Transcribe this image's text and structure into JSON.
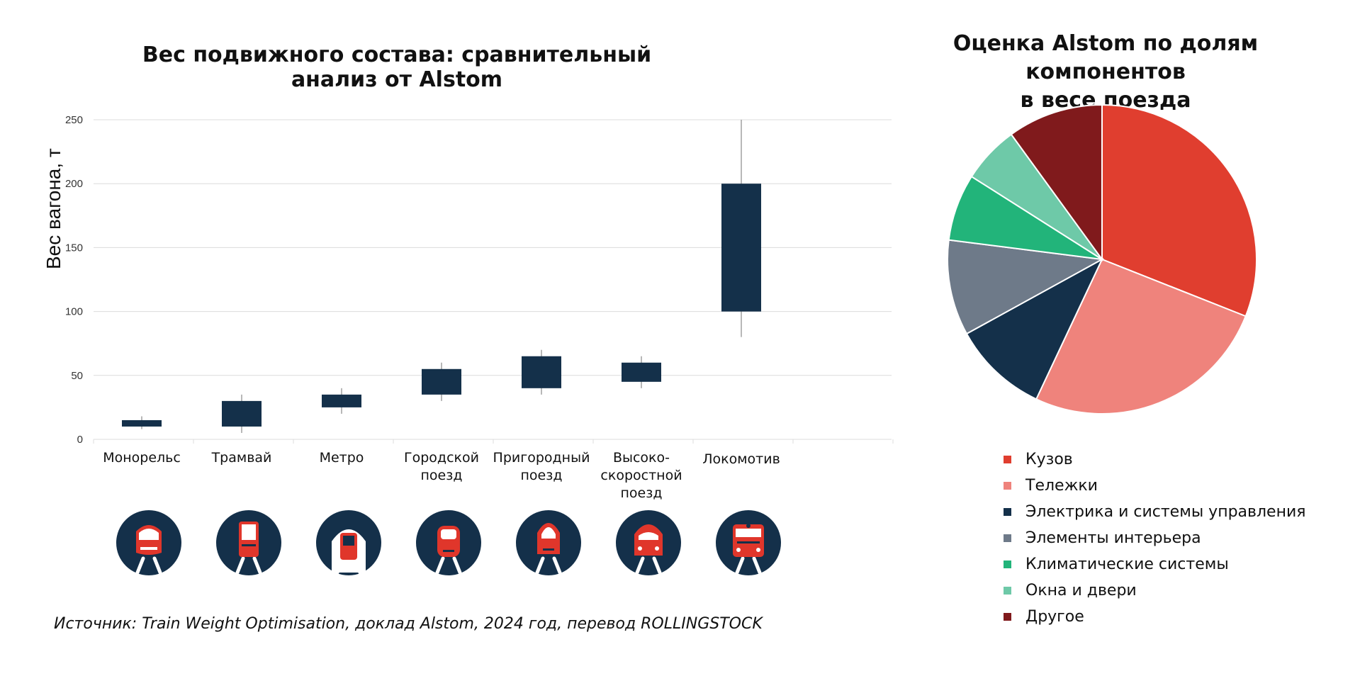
{
  "colors": {
    "box_fill": "#14304a",
    "icon_circle": "#14304a",
    "icon_red": "#e0362b",
    "grid": "#dcdcdc",
    "whisker": "#888888"
  },
  "box_chart": {
    "title": "Вес подвижного состава: сравнительный анализ от Alstom",
    "ylabel": "Вес вагона, т",
    "yticks": [
      "0",
      "50",
      "100",
      "150",
      "200",
      "250"
    ],
    "icons": [
      "monorail-icon",
      "tram-icon",
      "metro-icon",
      "city-train-icon",
      "suburban-train-icon",
      "high-speed-train-icon",
      "locomotive-icon"
    ]
  },
  "pie_chart": {
    "title_line1": "Оценка Alstom по долям компонентов",
    "title_line2": "в весе поезда"
  },
  "source": "Источник: Train Weight Optimisation, доклад Alstom, 2024 год, перевод ROLLINGSTOCK",
  "chart_data": [
    {
      "type": "box",
      "title": "Вес подвижного состава: сравнительный анализ от Alstom",
      "ylabel": "Вес вагона, т",
      "ylim": [
        0,
        250
      ],
      "grid": true,
      "categories": [
        "Монорельс",
        "Трамвай",
        "Метро",
        "Городской поезд",
        "Пригородный поезд",
        "Высоко-скоростной поезд",
        "Локомотив"
      ],
      "category_lines": [
        [
          "Монорельс"
        ],
        [
          "Трамвай"
        ],
        [
          "Метро"
        ],
        [
          "Городской",
          "поезд"
        ],
        [
          "Пригородный",
          "поезд"
        ],
        [
          "Высоко-",
          "скоростной",
          "поезд"
        ],
        [
          "Локомотив"
        ]
      ],
      "series": [
        {
          "min": 8,
          "q1": 10,
          "q3": 15,
          "max": 18
        },
        {
          "min": 5,
          "q1": 10,
          "q3": 30,
          "max": 35
        },
        {
          "min": 20,
          "q1": 25,
          "q3": 35,
          "max": 40
        },
        {
          "min": 30,
          "q1": 35,
          "q3": 55,
          "max": 60
        },
        {
          "min": 35,
          "q1": 40,
          "q3": 65,
          "max": 70
        },
        {
          "min": 40,
          "q1": 45,
          "q3": 60,
          "max": 65
        },
        {
          "min": 80,
          "q1": 100,
          "q3": 200,
          "max": 250
        }
      ]
    },
    {
      "type": "pie",
      "title": "Оценка Alstom по долям компонентов в весе поезда",
      "legend_position": "bottom",
      "slices": [
        {
          "label": "Кузов",
          "value": 31,
          "color": "#e03e2f"
        },
        {
          "label": "Тележки",
          "value": 26,
          "color": "#ef837c"
        },
        {
          "label": "Электрика и системы управления",
          "value": 10,
          "color": "#14304a"
        },
        {
          "label": "Элементы интерьера",
          "value": 10,
          "color": "#6e7a89"
        },
        {
          "label": "Климатические системы",
          "value": 7,
          "color": "#22b47a"
        },
        {
          "label": "Окна и двери",
          "value": 6,
          "color": "#6ec9a8"
        },
        {
          "label": "Другое",
          "value": 10,
          "color": "#801a1c"
        }
      ]
    }
  ]
}
